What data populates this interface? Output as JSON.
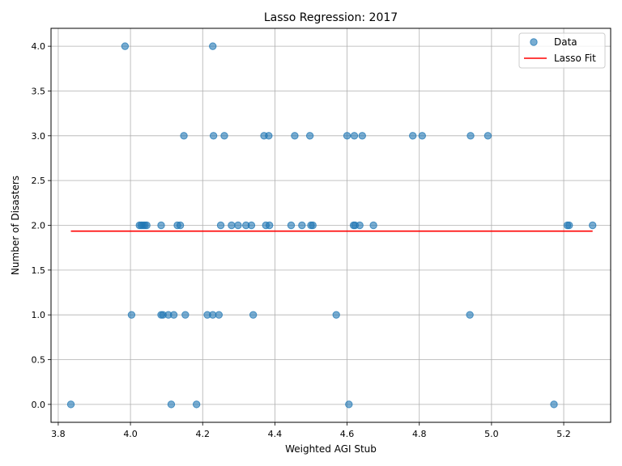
{
  "chart_data": {
    "type": "scatter",
    "title": "Lasso Regression: 2017",
    "xlabel": "Weighted AGI Stub",
    "ylabel": "Number of Disasters",
    "xlim": [
      3.78,
      5.33
    ],
    "ylim": [
      -0.2,
      4.2
    ],
    "xticks": [
      "3.8",
      "4.0",
      "4.2",
      "4.4",
      "4.6",
      "4.8",
      "5.0",
      "5.2"
    ],
    "yticks": [
      "0.0",
      "0.5",
      "1.0",
      "1.5",
      "2.0",
      "2.5",
      "3.0",
      "3.5",
      "4.0"
    ],
    "grid": true,
    "legend_placement": "top-right",
    "series": [
      {
        "name": "Data",
        "kind": "scatter",
        "color": "#1f77b4",
        "points": [
          [
            3.985,
            4
          ],
          [
            4.228,
            4
          ],
          [
            4.148,
            3
          ],
          [
            4.23,
            3
          ],
          [
            4.26,
            3
          ],
          [
            4.37,
            3
          ],
          [
            4.383,
            3
          ],
          [
            4.455,
            3
          ],
          [
            4.497,
            3
          ],
          [
            4.6,
            3
          ],
          [
            4.62,
            3
          ],
          [
            4.642,
            3
          ],
          [
            4.782,
            3
          ],
          [
            4.808,
            3
          ],
          [
            4.942,
            3
          ],
          [
            4.99,
            3
          ],
          [
            4.025,
            2
          ],
          [
            4.03,
            2
          ],
          [
            4.035,
            2
          ],
          [
            4.04,
            2
          ],
          [
            4.045,
            2
          ],
          [
            4.085,
            2
          ],
          [
            4.13,
            2
          ],
          [
            4.138,
            2
          ],
          [
            4.25,
            2
          ],
          [
            4.28,
            2
          ],
          [
            4.298,
            2
          ],
          [
            4.32,
            2
          ],
          [
            4.335,
            2
          ],
          [
            4.375,
            2
          ],
          [
            4.385,
            2
          ],
          [
            4.445,
            2
          ],
          [
            4.475,
            2
          ],
          [
            4.5,
            2
          ],
          [
            4.505,
            2
          ],
          [
            4.618,
            2
          ],
          [
            4.622,
            2
          ],
          [
            4.635,
            2
          ],
          [
            4.673,
            2
          ],
          [
            5.21,
            2
          ],
          [
            5.215,
            2
          ],
          [
            5.28,
            2
          ],
          [
            4.003,
            1
          ],
          [
            4.085,
            1
          ],
          [
            4.09,
            1
          ],
          [
            4.105,
            1
          ],
          [
            4.12,
            1
          ],
          [
            4.152,
            1
          ],
          [
            4.213,
            1
          ],
          [
            4.228,
            1
          ],
          [
            4.245,
            1
          ],
          [
            4.34,
            1
          ],
          [
            4.57,
            1
          ],
          [
            4.94,
            1
          ],
          [
            3.835,
            0
          ],
          [
            4.113,
            0
          ],
          [
            4.183,
            0
          ],
          [
            4.605,
            0
          ],
          [
            5.173,
            0
          ]
        ]
      },
      {
        "name": "Lasso Fit",
        "kind": "line",
        "color": "#ff0000",
        "x": [
          3.835,
          5.28
        ],
        "y": [
          1.935,
          1.935
        ]
      }
    ]
  }
}
